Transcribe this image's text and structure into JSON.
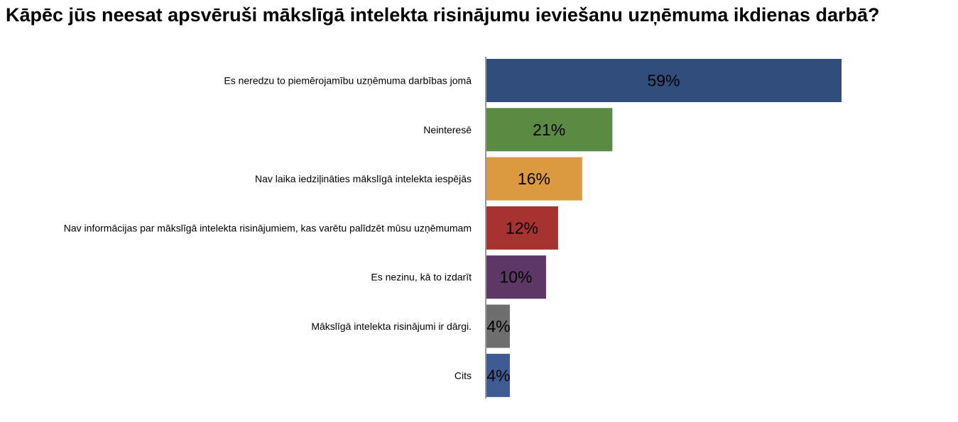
{
  "chart_data": {
    "type": "bar",
    "orientation": "horizontal",
    "title": "Kāpēc jūs neesat apsvēruši mākslīgā intelekta risinājumu ieviešanu uzņēmuma ikdienas darbā?",
    "categories": [
      "Es neredzu to piemērojamību uzņēmuma darbības jomā",
      "Neinteresē",
      "Nav laika iedziļināties mākslīgā intelekta iespējās",
      "Nav informācijas par mākslīgā intelekta risinājumiem, kas varētu palīdzēt mūsu uzņēmumam",
      "Es nezinu, kā to izdarīt",
      "Mākslīgā intelekta risinājumi ir dārgi.",
      "Cits"
    ],
    "values": [
      59,
      21,
      16,
      12,
      10,
      4,
      4
    ],
    "value_labels": [
      "59%",
      "21%",
      "16%",
      "12%",
      "10%",
      "4%",
      "4%"
    ],
    "colors": [
      "#314d7c",
      "#5b8a43",
      "#db9a3f",
      "#a63330",
      "#5d3765",
      "#6e6e6e",
      "#3e5c93"
    ],
    "axis_color": "#999999",
    "xlim": [
      0,
      59
    ],
    "grid": false,
    "legend": "none"
  }
}
